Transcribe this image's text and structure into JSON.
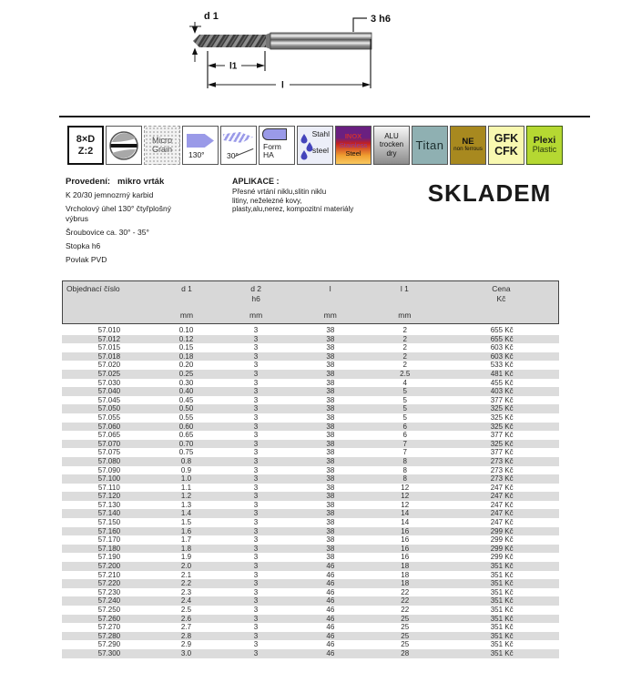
{
  "drawing": {
    "d1_label": "d 1",
    "shank_label": "3 h6",
    "l1_label": "l1",
    "l_label": "l"
  },
  "colors": {
    "accent_blue": "#9a9ae8",
    "titan_bg": "#8fb0b2",
    "ne_bg": "#a8891f",
    "gfk_bg": "#f8f8b0",
    "plexi_bg": "#b5d832",
    "stripe_gray": "#dcdcdc",
    "header_gray": "#d8d8d8",
    "inox_top": "#6a2080",
    "inox_mid": "#c42020",
    "inox_bottom": "#f0a030"
  },
  "badges": {
    "dxd": {
      "line1": "8×D",
      "line2": "Z:2"
    },
    "micro_grain": {
      "line1": "Micro",
      "line2": "Grain"
    },
    "point_angle": {
      "label": "130°"
    },
    "helix_angle": {
      "label": "30°"
    },
    "form_ha": {
      "line1": "Form",
      "line2": "HA"
    },
    "stahl": {
      "line1": "Stahl",
      "line2": "steel"
    },
    "inox": {
      "line1": "INOX",
      "line2": "Stainless",
      "line3": "Steel"
    },
    "alu": {
      "line1": "ALU",
      "line2": "trocken",
      "line3": "dry"
    },
    "titan": {
      "label": "Titan"
    },
    "ne": {
      "line1": "NE",
      "line2": "non ferrous"
    },
    "gfk": {
      "line1": "GFK",
      "line2": "CFK"
    },
    "plexi": {
      "line1": "Plexi",
      "line2": "Plastic"
    }
  },
  "provedeni": {
    "title": "Provedení:",
    "value": "mikro vrták",
    "lines": [
      "K 20/30 jemnozrný karbid",
      "Vrcholový úhel 130° čtyřplošný\nvýbrus",
      "Šroubovice  ca. 30° - 35°",
      "Stopka h6",
      "Povlak  PVD"
    ]
  },
  "aplikace": {
    "title": "APLIKACE :",
    "lines": [
      "Přesné vrtání niklu,slitin niklu",
      "litiny, neželezné kovy,",
      "plasty,alu,nerez, kompozitní materiály"
    ]
  },
  "stock_label": "SKLADEM",
  "table": {
    "headers": [
      {
        "line1": "Objednací číslo"
      },
      {
        "line1": "d 1",
        "unit": "mm"
      },
      {
        "line1": "d 2",
        "line2": "h6",
        "unit": "mm"
      },
      {
        "line1": "l",
        "unit": "mm"
      },
      {
        "line1": "l 1",
        "unit": "mm"
      },
      {
        "line1": "Cena",
        "line2": "Kč"
      }
    ],
    "rows": [
      [
        "57.010",
        "0.10",
        "3",
        "38",
        "2",
        "655 Kč"
      ],
      [
        "57.012",
        "0.12",
        "3",
        "38",
        "2",
        "655 Kč"
      ],
      [
        "57.015",
        "0.15",
        "3",
        "38",
        "2",
        "603 Kč"
      ],
      [
        "57.018",
        "0.18",
        "3",
        "38",
        "2",
        "603 Kč"
      ],
      [
        "57.020",
        "0.20",
        "3",
        "38",
        "2",
        "533 Kč"
      ],
      [
        "57.025",
        "0.25",
        "3",
        "38",
        "2.5",
        "481 Kč"
      ],
      [
        "57.030",
        "0.30",
        "3",
        "38",
        "4",
        "455 Kč"
      ],
      [
        "57.040",
        "0.40",
        "3",
        "38",
        "5",
        "403 Kč"
      ],
      [
        "57.045",
        "0.45",
        "3",
        "38",
        "5",
        "377 Kč"
      ],
      [
        "57.050",
        "0.50",
        "3",
        "38",
        "5",
        "325 Kč"
      ],
      [
        "57.055",
        "0.55",
        "3",
        "38",
        "5",
        "325 Kč"
      ],
      [
        "57.060",
        "0.60",
        "3",
        "38",
        "6",
        "325 Kč"
      ],
      [
        "57.065",
        "0.65",
        "3",
        "38",
        "6",
        "377 Kč"
      ],
      [
        "57.070",
        "0.70",
        "3",
        "38",
        "7",
        "325 Kč"
      ],
      [
        "57.075",
        "0.75",
        "3",
        "38",
        "7",
        "377 Kč"
      ],
      [
        "57.080",
        "0.8",
        "3",
        "38",
        "8",
        "273 Kč"
      ],
      [
        "57.090",
        "0.9",
        "3",
        "38",
        "8",
        "273 Kč"
      ],
      [
        "57.100",
        "1.0",
        "3",
        "38",
        "8",
        "273 Kč"
      ],
      [
        "57.110",
        "1.1",
        "3",
        "38",
        "12",
        "247 Kč"
      ],
      [
        "57.120",
        "1.2",
        "3",
        "38",
        "12",
        "247 Kč"
      ],
      [
        "57.130",
        "1.3",
        "3",
        "38",
        "12",
        "247 Kč"
      ],
      [
        "57.140",
        "1.4",
        "3",
        "38",
        "14",
        "247 Kč"
      ],
      [
        "57.150",
        "1.5",
        "3",
        "38",
        "14",
        "247 Kč"
      ],
      [
        "57.160",
        "1.6",
        "3",
        "38",
        "16",
        "299 Kč"
      ],
      [
        "57.170",
        "1.7",
        "3",
        "38",
        "16",
        "299 Kč"
      ],
      [
        "57.180",
        "1.8",
        "3",
        "38",
        "16",
        "299 Kč"
      ],
      [
        "57.190",
        "1.9",
        "3",
        "38",
        "16",
        "299 Kč"
      ],
      [
        "57.200",
        "2.0",
        "3",
        "46",
        "18",
        "351 Kč"
      ],
      [
        "57.210",
        "2.1",
        "3",
        "46",
        "18",
        "351 Kč"
      ],
      [
        "57.220",
        "2.2",
        "3",
        "46",
        "18",
        "351 Kč"
      ],
      [
        "57.230",
        "2.3",
        "3",
        "46",
        "22",
        "351 Kč"
      ],
      [
        "57.240",
        "2.4",
        "3",
        "46",
        "22",
        "351 Kč"
      ],
      [
        "57.250",
        "2.5",
        "3",
        "46",
        "22",
        "351 Kč"
      ],
      [
        "57.260",
        "2.6",
        "3",
        "46",
        "25",
        "351 Kč"
      ],
      [
        "57.270",
        "2.7",
        "3",
        "46",
        "25",
        "351 Kč"
      ],
      [
        "57.280",
        "2.8",
        "3",
        "46",
        "25",
        "351 Kč"
      ],
      [
        "57.290",
        "2.9",
        "3",
        "46",
        "25",
        "351 Kč"
      ],
      [
        "57.300",
        "3.0",
        "3",
        "46",
        "28",
        "351 Kč"
      ]
    ]
  }
}
